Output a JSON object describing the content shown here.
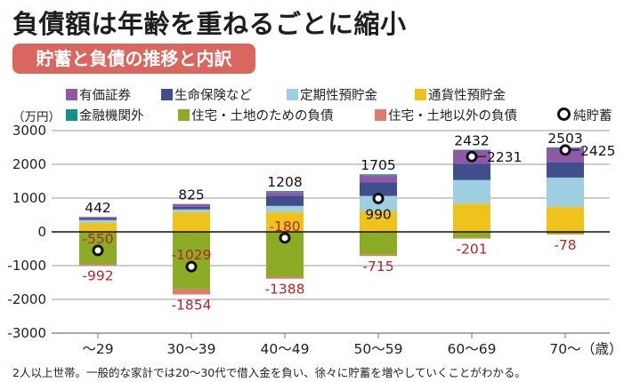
{
  "title": "負債額は年齢を重ねるごとに縮小",
  "subtitle": "貯蓄と負債の推移と内訳",
  "unit_label": "（万円）",
  "note": "2人以上世帯。一般的な家計では20～30代で借入金を負い、徐々に貯蓄を増やしていくことがわかる。",
  "colors": {
    "securities": "#8e5aa8",
    "life_insurance": "#3f4f8c",
    "time_deposit": "#9ecfe0",
    "demand_deposit": "#f0c21c",
    "non_financial": "#14908a",
    "housing_debt": "#8bac24",
    "other_debt": "#e07a6c",
    "net_savings": "#111111",
    "negative_text": "#b3262d",
    "subtitle_bg": "#d9675d"
  },
  "legend": [
    {
      "key": "securities",
      "label": "有価証券",
      "type": "square"
    },
    {
      "key": "life_insurance",
      "label": "生命保険など",
      "type": "square"
    },
    {
      "key": "time_deposit",
      "label": "定期性預貯金",
      "type": "square"
    },
    {
      "key": "demand_deposit",
      "label": "通貨性預貯金",
      "type": "square"
    },
    {
      "key": "non_financial",
      "label": "金融機関外",
      "type": "square"
    },
    {
      "key": "housing_debt",
      "label": "住宅・土地のための負債",
      "type": "square"
    },
    {
      "key": "other_debt",
      "label": "住宅・土地以外の負債",
      "type": "square"
    },
    {
      "key": "net_savings",
      "label": "純貯蓄",
      "type": "ring"
    }
  ],
  "chart_data": {
    "type": "bar",
    "stacked": true,
    "title": "貯蓄と負債の推移と内訳",
    "xlabel": "（歳）",
    "ylabel": "（万円）",
    "ylim": [
      -3000,
      3000
    ],
    "yticks": [
      3000,
      2000,
      1000,
      0,
      -1000,
      -2000,
      -3000
    ],
    "grid": true,
    "categories": [
      "～29",
      "30～39",
      "40～49",
      "50～59",
      "60～69",
      "70～"
    ],
    "savings_series": [
      {
        "key": "demand_deposit",
        "name": "通貨性預貯金",
        "values": [
          272,
          585,
          588,
          620,
          837,
          738
        ]
      },
      {
        "key": "time_deposit",
        "name": "定期性預貯金",
        "values": [
          80,
          80,
          180,
          445,
          700,
          870
        ]
      },
      {
        "key": "life_insurance",
        "name": "生命保険など",
        "values": [
          60,
          80,
          300,
          395,
          475,
          445
        ]
      },
      {
        "key": "securities",
        "name": "有価証券",
        "values": [
          30,
          80,
          110,
          215,
          410,
          440
        ]
      },
      {
        "key": "non_financial",
        "name": "金融機関外",
        "values": [
          0,
          0,
          30,
          30,
          10,
          10
        ]
      }
    ],
    "debt_series": [
      {
        "key": "housing_debt",
        "name": "住宅・土地のための負債",
        "values": [
          -950,
          -1700,
          -1330,
          -680,
          -180,
          -60
        ]
      },
      {
        "key": "other_debt",
        "name": "住宅・土地以外の負債",
        "values": [
          -42,
          -154,
          -58,
          -35,
          -21,
          -18
        ]
      }
    ],
    "savings_totals": [
      442,
      825,
      1208,
      1705,
      2432,
      2503
    ],
    "debt_totals": [
      -992,
      -1854,
      -1388,
      -715,
      -201,
      -78
    ],
    "net_savings": [
      -550,
      -1029,
      -180,
      990,
      2231,
      2425
    ],
    "savings_total_labels": [
      "442",
      "825",
      "1208",
      "1705",
      "2432",
      "2503"
    ],
    "debt_total_labels": [
      "-992",
      "-1854",
      "-1388",
      "-715",
      "-201",
      "-78"
    ],
    "net_savings_labels": [
      "-550",
      "-1029",
      "-180",
      "990",
      "2231",
      "2425"
    ],
    "ytick_labels": [
      "3000",
      "2000",
      "1000",
      "0",
      "-1000",
      "-2000",
      "-3000"
    ]
  }
}
